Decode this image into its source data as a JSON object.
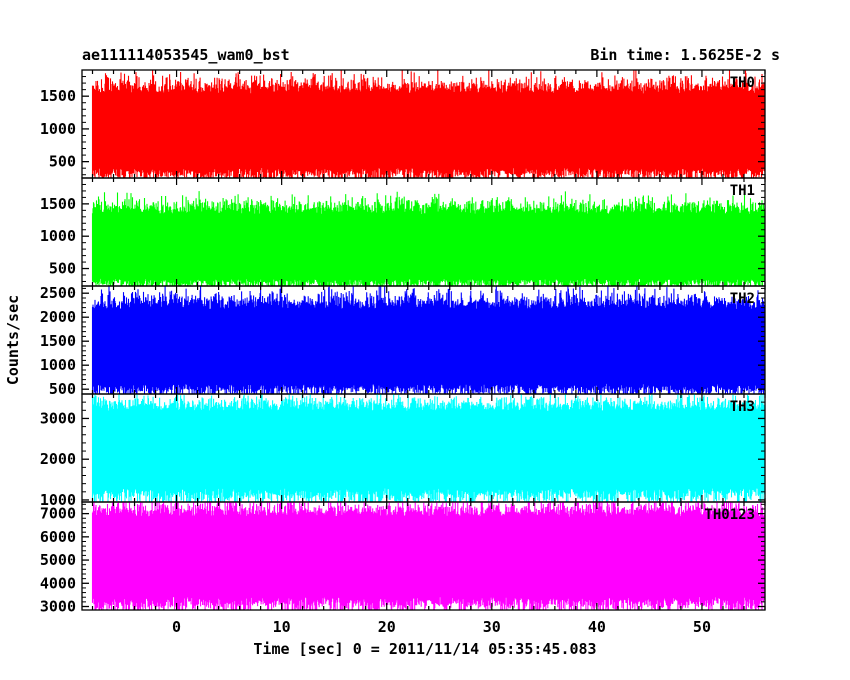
{
  "header": {
    "left": "ae111114053545_wam0_bst",
    "right": "Bin time: 1.5625E-2 s"
  },
  "chart_data": {
    "type": "line",
    "title": "ae111114053545_wam0_bst",
    "subtitle": "Bin time: 1.5625E-2 s",
    "xlabel": "Time [sec] 0 = 2011/11/14 05:35:45.083",
    "ylabel": "Counts/sec",
    "xlim": [
      -9,
      56
    ],
    "x_ticks": [
      0,
      10,
      20,
      30,
      40,
      50
    ],
    "x_range_data": [
      -8,
      56
    ],
    "bin_time_s": 0.015625,
    "grid": false,
    "panels": [
      {
        "name": "TH0",
        "color": "#ff0000",
        "ylim": [
          250,
          1900
        ],
        "y_ticks": [
          500,
          1000,
          1500
        ],
        "mean": 980,
        "typical_low": 280,
        "typical_high": 1700
      },
      {
        "name": "TH1",
        "color": "#00ff00",
        "ylim": [
          230,
          1900
        ],
        "y_ticks": [
          500,
          1000,
          1500
        ],
        "mean": 760,
        "typical_low": 250,
        "typical_high": 1500
      },
      {
        "name": "TH2",
        "color": "#0000ff",
        "ylim": [
          400,
          2650
        ],
        "y_ticks": [
          500,
          1000,
          1500,
          2000,
          2500
        ],
        "mean": 1350,
        "typical_low": 450,
        "typical_high": 2400
      },
      {
        "name": "TH3",
        "color": "#00ffff",
        "ylim": [
          950,
          3600
        ],
        "y_ticks": [
          1000,
          2000,
          3000
        ],
        "mean": 2400,
        "typical_low": 1050,
        "typical_high": 3400
      },
      {
        "name": "TH0123",
        "color": "#ff00ff",
        "ylim": [
          2850,
          7500
        ],
        "y_ticks": [
          3000,
          4000,
          5000,
          6000,
          7000
        ],
        "mean": 5300,
        "typical_low": 3000,
        "typical_high": 7300
      }
    ]
  }
}
